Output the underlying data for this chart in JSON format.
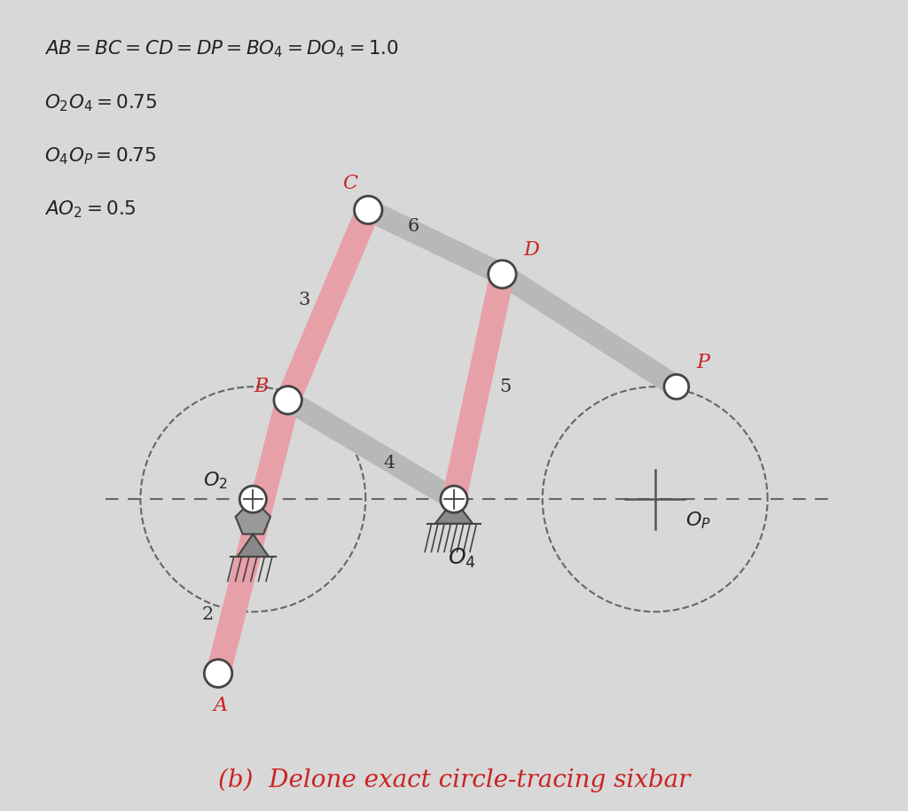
{
  "bg_color": "#d8d8d8",
  "title_text": "(b)  Delone exact circle-tracing sixbar",
  "title_color": "#cc2222",
  "link_color_pink": "#e8a0a8",
  "link_color_gray": "#b8b8b8",
  "dashed_color": "#666666",
  "label_red": "#cc2222",
  "label_black": "#222222",
  "O2": [
    0.0,
    0.0
  ],
  "O4": [
    0.75,
    0.0
  ],
  "OP": [
    1.5,
    0.0
  ],
  "A": [
    -0.13,
    -0.65
  ],
  "B": [
    0.13,
    0.37
  ],
  "C": [
    0.43,
    1.08
  ],
  "D": [
    0.93,
    0.84
  ],
  "P": [
    1.58,
    0.42
  ],
  "circle_O2_r": 0.42,
  "circle_OP_r": 0.42
}
